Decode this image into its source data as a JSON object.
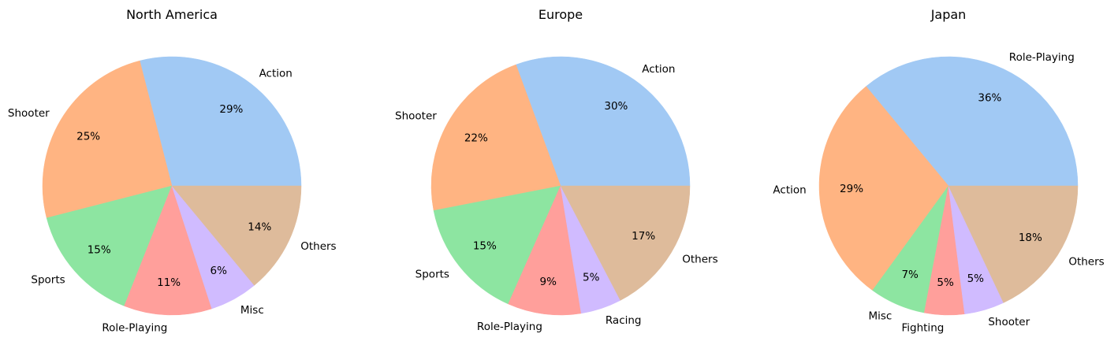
{
  "chart_data": [
    {
      "type": "pie",
      "title": "North America",
      "start_angle": 0,
      "direction": "counterclockwise",
      "slices": [
        {
          "label": "Action",
          "value": 29,
          "pct_label": "29%",
          "color": "#a1c9f4"
        },
        {
          "label": "Shooter",
          "value": 25,
          "pct_label": "25%",
          "color": "#ffb482"
        },
        {
          "label": "Sports",
          "value": 15,
          "pct_label": "15%",
          "color": "#8de5a1"
        },
        {
          "label": "Role-Playing",
          "value": 11,
          "pct_label": "11%",
          "color": "#ff9f9b"
        },
        {
          "label": "Misc",
          "value": 6,
          "pct_label": "6%",
          "color": "#d0bbff"
        },
        {
          "label": "Others",
          "value": 14,
          "pct_label": "14%",
          "color": "#debb9b"
        }
      ]
    },
    {
      "type": "pie",
      "title": "Europe",
      "start_angle": 0,
      "direction": "counterclockwise",
      "slices": [
        {
          "label": "Action",
          "value": 30,
          "pct_label": "30%",
          "color": "#a1c9f4"
        },
        {
          "label": "Shooter",
          "value": 22,
          "pct_label": "22%",
          "color": "#ffb482"
        },
        {
          "label": "Sports",
          "value": 15,
          "pct_label": "15%",
          "color": "#8de5a1"
        },
        {
          "label": "Role-Playing",
          "value": 9,
          "pct_label": "9%",
          "color": "#ff9f9b"
        },
        {
          "label": "Racing",
          "value": 5,
          "pct_label": "5%",
          "color": "#d0bbff"
        },
        {
          "label": "Others",
          "value": 17,
          "pct_label": "17%",
          "color": "#debb9b"
        }
      ]
    },
    {
      "type": "pie",
      "title": "Japan",
      "start_angle": 0,
      "direction": "counterclockwise",
      "slices": [
        {
          "label": "Role-Playing",
          "value": 36,
          "pct_label": "36%",
          "color": "#a1c9f4"
        },
        {
          "label": "Action",
          "value": 29,
          "pct_label": "29%",
          "color": "#ffb482"
        },
        {
          "label": "Misc",
          "value": 7,
          "pct_label": "7%",
          "color": "#8de5a1"
        },
        {
          "label": "Fighting",
          "value": 5,
          "pct_label": "5%",
          "color": "#ff9f9b"
        },
        {
          "label": "Shooter",
          "value": 5,
          "pct_label": "5%",
          "color": "#d0bbff"
        },
        {
          "label": "Others",
          "value": 18,
          "pct_label": "18%",
          "color": "#debb9b"
        }
      ]
    }
  ]
}
